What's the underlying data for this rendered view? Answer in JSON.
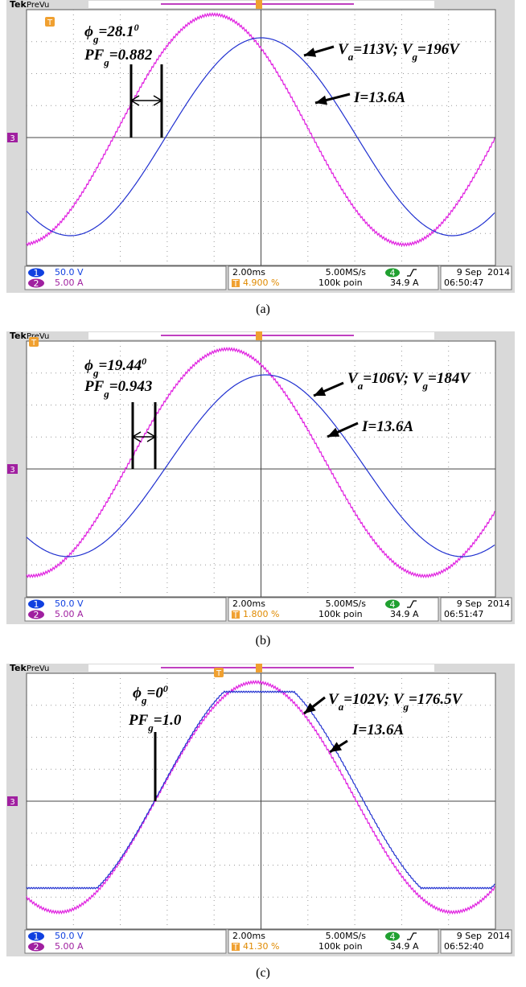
{
  "panels": [
    {
      "header": {
        "brand": "Tek",
        "mode": "PreVu"
      },
      "markers": {
        "trigger": "T",
        "channel": "3"
      },
      "annotations": {
        "phase": [
          {
            "text": "ϕ"
          },
          {
            "sub": "g"
          },
          {
            "text": "=28.1"
          },
          {
            "sup": "0"
          }
        ],
        "power_factor": [
          {
            "text": "PF"
          },
          {
            "sub": "g"
          },
          {
            "text": "=0.882"
          }
        ],
        "voltage": [
          {
            "text": "V"
          },
          {
            "sub": "a"
          },
          {
            "text": "=113V; V"
          },
          {
            "sub": "g"
          },
          {
            "text": "=196V"
          }
        ],
        "current": [
          {
            "text": "I=13.6A"
          }
        ]
      },
      "status": {
        "ch1_badge": "1",
        "ch1_scale": "50.0 V",
        "ch2_badge": "2",
        "ch2_scale": "5.00 A",
        "timebase": "2.00ms",
        "trigger_icon": "T",
        "trigger_pos": "4.900 %",
        "sample_rate": "5.00MS/s",
        "record_length": "100k poin",
        "trigger_badge": "4",
        "trigger_level": "34.9 A",
        "date": "9 Sep  2014",
        "time": "06:50:47"
      },
      "caption": "(a)"
    },
    {
      "header": {
        "brand": "Tek",
        "mode": "PreVu"
      },
      "markers": {
        "trigger": "T",
        "channel": "3"
      },
      "annotations": {
        "phase": [
          {
            "text": "ϕ"
          },
          {
            "sub": "g"
          },
          {
            "text": "=19.44"
          },
          {
            "sup": "0"
          }
        ],
        "power_factor": [
          {
            "text": "PF"
          },
          {
            "sub": "g"
          },
          {
            "text": "=0.943"
          }
        ],
        "voltage": [
          {
            "text": "V"
          },
          {
            "sub": "a"
          },
          {
            "text": "=106V; V"
          },
          {
            "sub": "g"
          },
          {
            "text": "=184V"
          }
        ],
        "current": [
          {
            "text": "I=13.6A"
          }
        ]
      },
      "status": {
        "ch1_badge": "1",
        "ch1_scale": "50.0 V",
        "ch2_badge": "2",
        "ch2_scale": "5.00 A",
        "timebase": "2.00ms",
        "trigger_icon": "T",
        "trigger_pos": "1.800 %",
        "sample_rate": "5.00MS/s",
        "record_length": "100k poin",
        "trigger_badge": "4",
        "trigger_level": "34.9 A",
        "date": "9 Sep  2014",
        "time": "06:51:47"
      },
      "caption": "(b)"
    },
    {
      "header": {
        "brand": "Tek",
        "mode": "PreVu"
      },
      "markers": {
        "trigger": "T",
        "channel": "3"
      },
      "annotations": {
        "phase": [
          {
            "text": "ϕ"
          },
          {
            "sub": "g"
          },
          {
            "text": "=0"
          },
          {
            "sup": "0"
          }
        ],
        "power_factor": [
          {
            "text": "PF"
          },
          {
            "sub": "g"
          },
          {
            "text": "=1.0"
          }
        ],
        "voltage": [
          {
            "text": "V"
          },
          {
            "sub": "a"
          },
          {
            "text": "=102V; V"
          },
          {
            "sub": "g"
          },
          {
            "text": "=176.5V"
          }
        ],
        "current": [
          {
            "text": "I=13.6A"
          }
        ]
      },
      "status": {
        "ch1_badge": "1",
        "ch1_scale": "50.0 V",
        "ch2_badge": "2",
        "ch2_scale": "5.00 A",
        "timebase": "2.00ms",
        "trigger_icon": "T",
        "trigger_pos": "41.30 %",
        "sample_rate": "5.00MS/s",
        "record_length": "100k poin",
        "trigger_badge": "4",
        "trigger_level": "34.9 A",
        "date": "9 Sep  2014",
        "time": "06:52:40"
      },
      "caption": "(c)"
    }
  ]
}
